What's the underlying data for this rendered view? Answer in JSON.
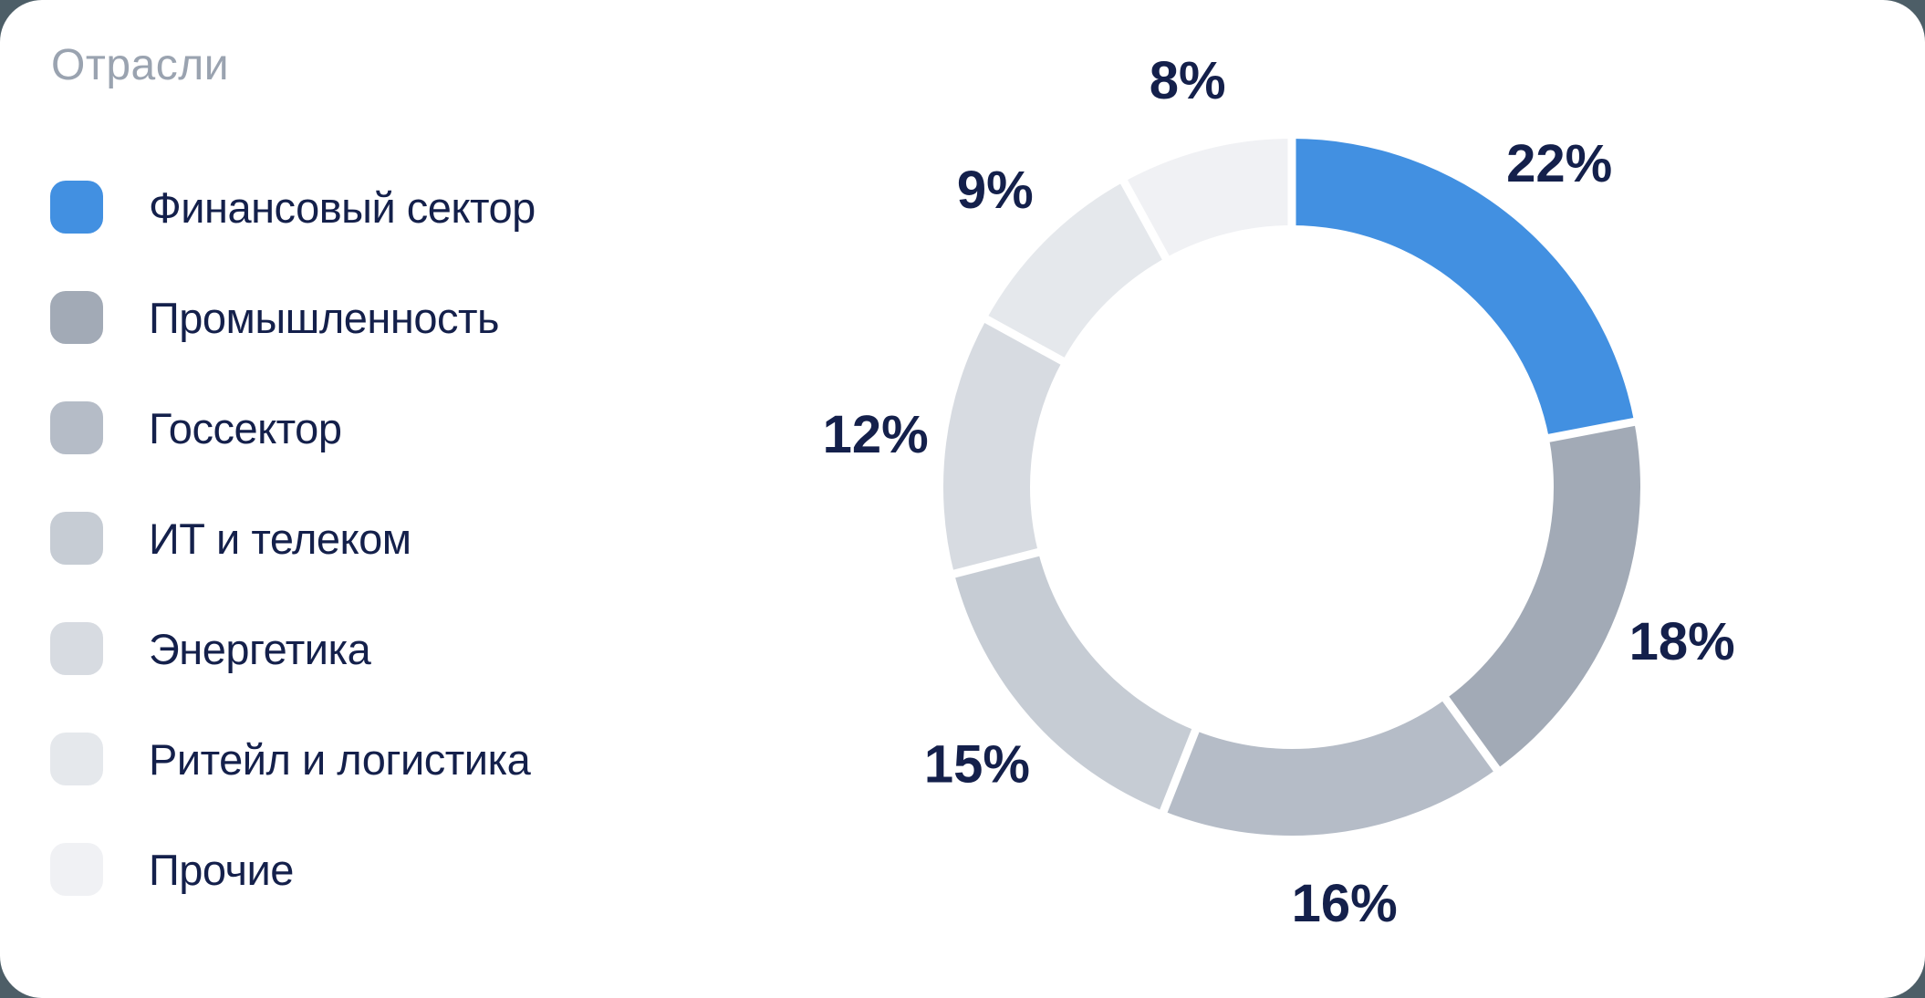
{
  "card": {
    "title": "Отрасли"
  },
  "colors": {
    "page_bg": "#4D5E67",
    "card_bg": "#FFFFFF",
    "title_text": "#9AA3B0",
    "label_text": "#14204B",
    "segment_gap": "#FFFFFF",
    "accent_blue": "#4290E1"
  },
  "chart_data": {
    "type": "pie",
    "donut": true,
    "title": "Отрасли",
    "direction": "clockwise",
    "start_angle_deg": 0,
    "legend_position": "left",
    "value_suffix": "%",
    "categories": [
      "Финансовый сектор",
      "Промышленность",
      "Госсектор",
      "ИТ и телеком",
      "Энергетика",
      "Ритейл и логистика",
      "Прочие"
    ],
    "values": [
      22,
      18,
      16,
      15,
      12,
      9,
      8
    ],
    "labels": [
      "22%",
      "18%",
      "16%",
      "15%",
      "12%",
      "9%",
      "8%"
    ],
    "colors": [
      "#4290E1",
      "#A2AAB6",
      "#B5BCC7",
      "#C6CCD4",
      "#D7DBE1",
      "#E5E8EC",
      "#F0F1F4"
    ]
  }
}
